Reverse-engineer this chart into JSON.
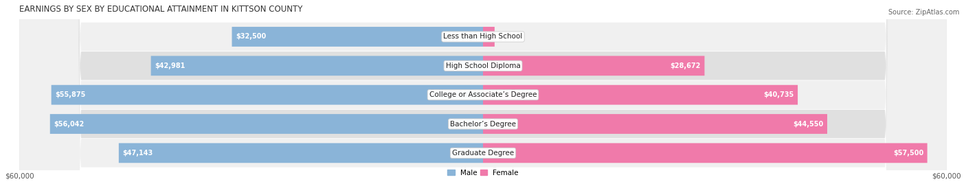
{
  "title": "EARNINGS BY SEX BY EDUCATIONAL ATTAINMENT IN KITTSON COUNTY",
  "source": "Source: ZipAtlas.com",
  "categories": [
    "Less than High School",
    "High School Diploma",
    "College or Associate’s Degree",
    "Bachelor’s Degree",
    "Graduate Degree"
  ],
  "male_values": [
    32500,
    42981,
    55875,
    56042,
    47143
  ],
  "female_values": [
    0,
    28672,
    40735,
    44550,
    57500
  ],
  "male_color": "#8ab4d8",
  "female_color": "#f07aaa",
  "male_label": "Male",
  "female_label": "Female",
  "xlim": 60000,
  "bar_height": 0.68,
  "title_fontsize": 8.5,
  "label_fontsize": 7.5,
  "value_fontsize": 7,
  "axis_label_fontsize": 7.5,
  "source_fontsize": 7,
  "row_bg_even": "#f0f0f0",
  "row_bg_odd": "#e0e0e0",
  "fig_bg": "#ffffff"
}
